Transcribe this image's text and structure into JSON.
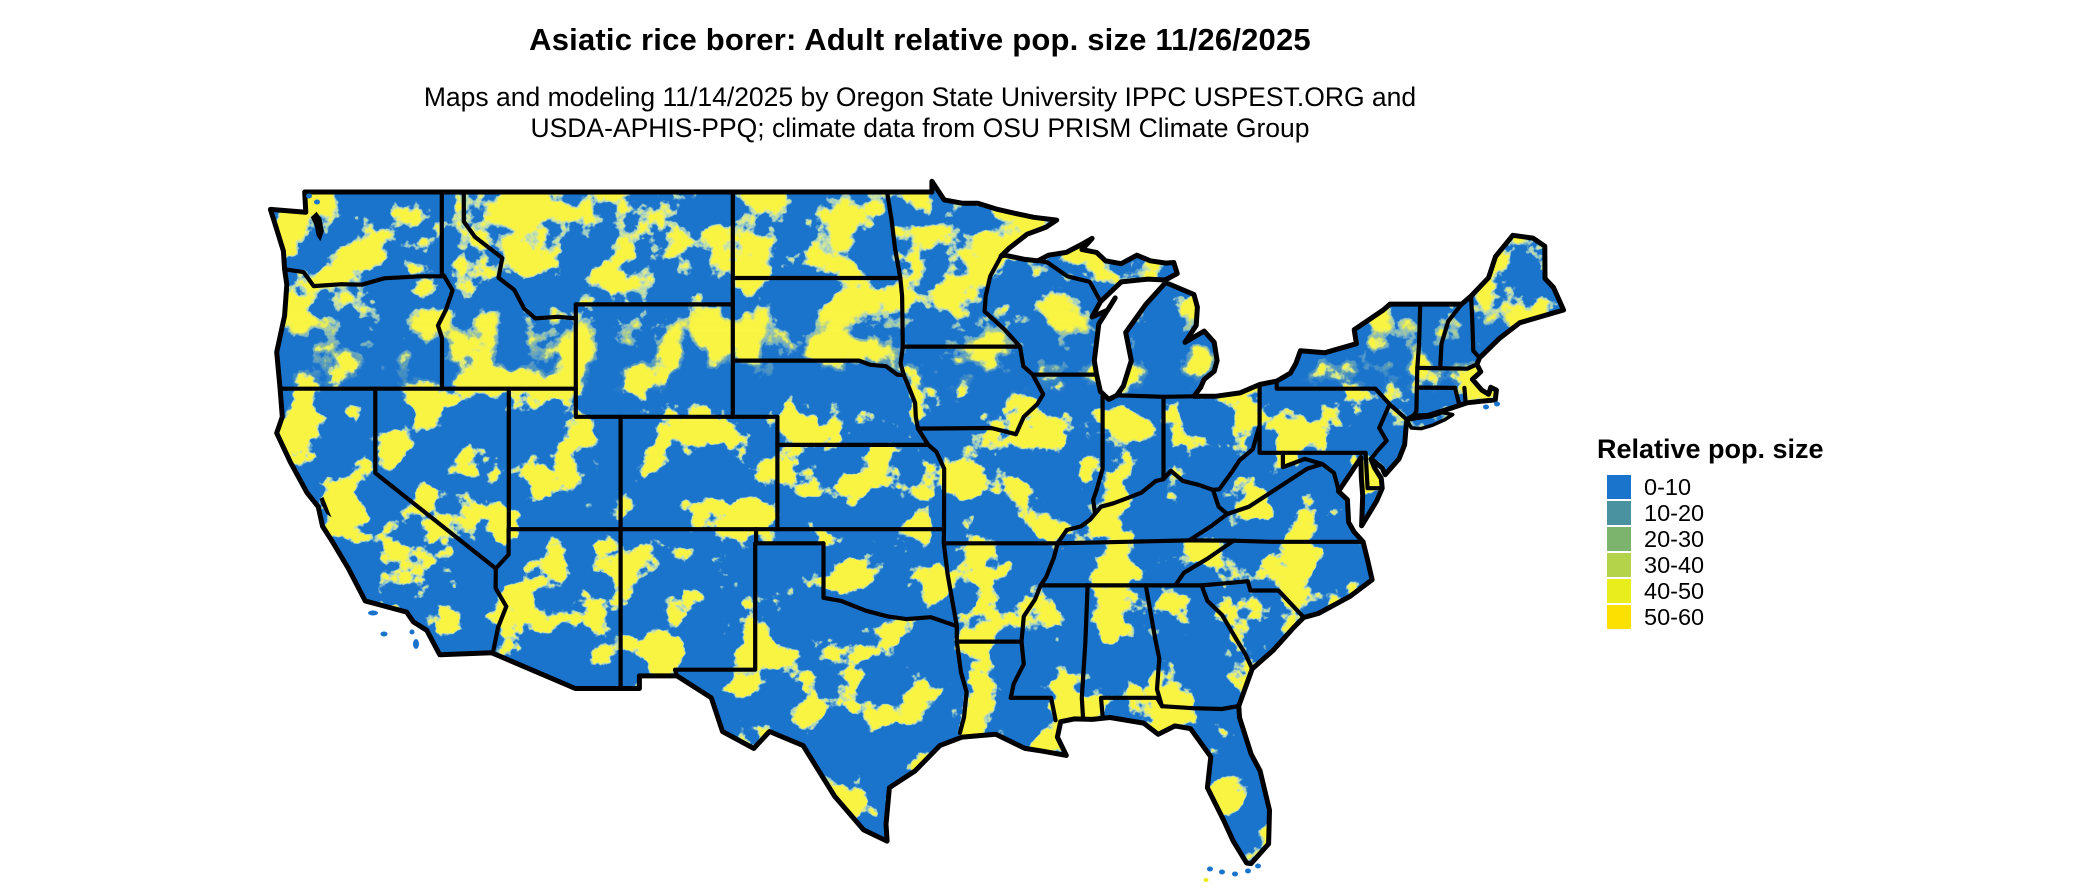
{
  "title": "Asiatic rice borer: Adult relative pop. size 11/26/2025",
  "subtitle": {
    "line1": "Maps and modeling 11/14/2025 by Oregon State University IPPC USPEST.ORG and",
    "line2": "USDA-APHIS-PPQ; climate data from OSU PRISM Climate Group"
  },
  "legend": {
    "title": "Relative pop. size",
    "items": [
      {
        "label": "0-10",
        "color": "#1b74cc"
      },
      {
        "label": "10-20",
        "color": "#4a92a0"
      },
      {
        "label": "20-30",
        "color": "#7cb46e"
      },
      {
        "label": "30-40",
        "color": "#b5d24b"
      },
      {
        "label": "40-50",
        "color": "#e9ed1c"
      },
      {
        "label": "50-60",
        "color": "#fbe102"
      }
    ]
  },
  "map": {
    "region": "Contiguous United States",
    "value_name": "Adult relative population size",
    "base_color": "#1b74cc",
    "border_color": "#000000",
    "water_color": "#ffffff"
  },
  "chart_data": {
    "type": "heatmap",
    "title": "Asiatic rice borer: Adult relative pop. size 11/26/2025",
    "legend_title": "Relative pop. size",
    "region": "Contiguous United States",
    "bins": [
      {
        "range": "0-10",
        "color": "#1b74cc"
      },
      {
        "range": "10-20",
        "color": "#4a92a0"
      },
      {
        "range": "20-30",
        "color": "#7cb46e"
      },
      {
        "range": "30-40",
        "color": "#b5d24b"
      },
      {
        "range": "40-50",
        "color": "#e9ed1c"
      },
      {
        "range": "50-60",
        "color": "#fbe102"
      }
    ],
    "pattern_summary": "Most of the map is in the 0-10 class (blue); banded 10-60 class contours (teal/green/yellow) trace the Cascades, Rockies, Appalachians and a dense belt across Montana, North Dakota, Minnesota, Wisconsin and the Michigan Upper Peninsula"
  }
}
